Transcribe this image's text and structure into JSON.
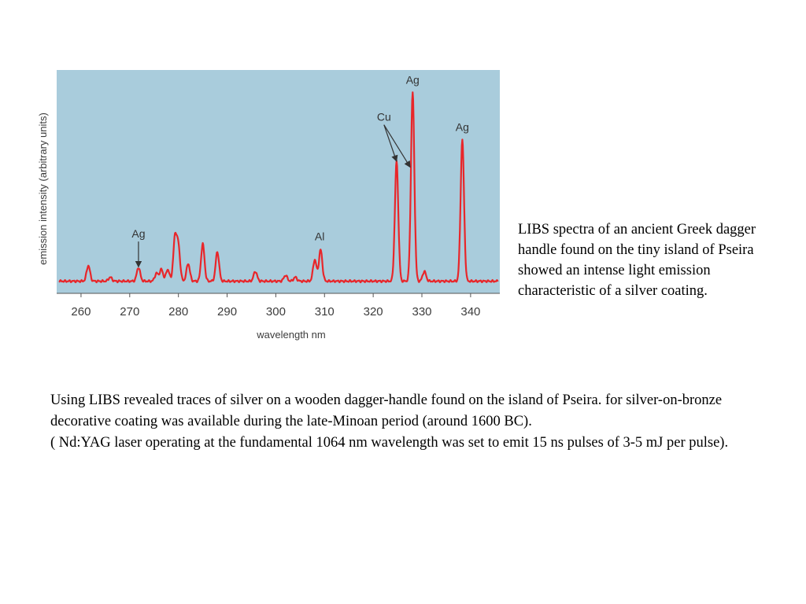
{
  "caption": "LIBS spectra of an ancient Greek dagger handle found on the tiny island of Pseira showed an intense light emission characteristic of a silver coating.",
  "body": {
    "paragraph1": "Using LIBS revealed traces of silver on a wooden dagger-handle found on the island of Pseira. for silver-on-bronze decorative coating was available during the late-Minoan period (around 1600 BC).",
    "paragraph2": "( Nd:YAG laser operating at the fundamental 1064 nm wavelength was set to emit 15 ns pulses of 3-5 mJ per pulse)."
  },
  "chart_data": {
    "type": "line",
    "title": "",
    "xlabel": "wavelength nm",
    "ylabel": "emission intensity (arbitrary units)",
    "xlim": [
      255,
      346
    ],
    "ylim": [
      0,
      100
    ],
    "xticks": [
      260,
      270,
      280,
      290,
      300,
      310,
      320,
      330,
      340
    ],
    "grid": false,
    "background_color": "#a9ccdc",
    "line_color": "#e8262a",
    "baseline": 3,
    "peaks": [
      {
        "x": 261.5,
        "y": 8
      },
      {
        "x": 266.0,
        "y": 2
      },
      {
        "x": 271.8,
        "y": 7
      },
      {
        "x": 275.5,
        "y": 4
      },
      {
        "x": 276.5,
        "y": 6
      },
      {
        "x": 277.8,
        "y": 6
      },
      {
        "x": 279.3,
        "y": 22
      },
      {
        "x": 280.0,
        "y": 17
      },
      {
        "x": 282.0,
        "y": 9
      },
      {
        "x": 285.0,
        "y": 19
      },
      {
        "x": 288.0,
        "y": 15
      },
      {
        "x": 295.8,
        "y": 5
      },
      {
        "x": 302.0,
        "y": 3
      },
      {
        "x": 304.0,
        "y": 2
      },
      {
        "x": 308.0,
        "y": 11
      },
      {
        "x": 309.2,
        "y": 16
      },
      {
        "x": 324.8,
        "y": 61
      },
      {
        "x": 328.1,
        "y": 96
      },
      {
        "x": 330.5,
        "y": 5
      },
      {
        "x": 338.3,
        "y": 72
      }
    ],
    "annotations": [
      {
        "label": "Ag",
        "x": 271.8,
        "arrow_to": [
          {
            "x": 271.8,
            "y": 6
          }
        ]
      },
      {
        "label": "Al",
        "x": 309.0,
        "arrow_to": []
      },
      {
        "label": "Cu",
        "x": 324.8,
        "arrow_to": [
          {
            "x": 324.8,
            "y": 60
          },
          {
            "x": 327.6,
            "y": 57
          }
        ]
      },
      {
        "label": "Ag",
        "x": 328.1,
        "arrow_to": []
      },
      {
        "label": "Ag",
        "x": 338.3,
        "arrow_to": []
      }
    ]
  }
}
